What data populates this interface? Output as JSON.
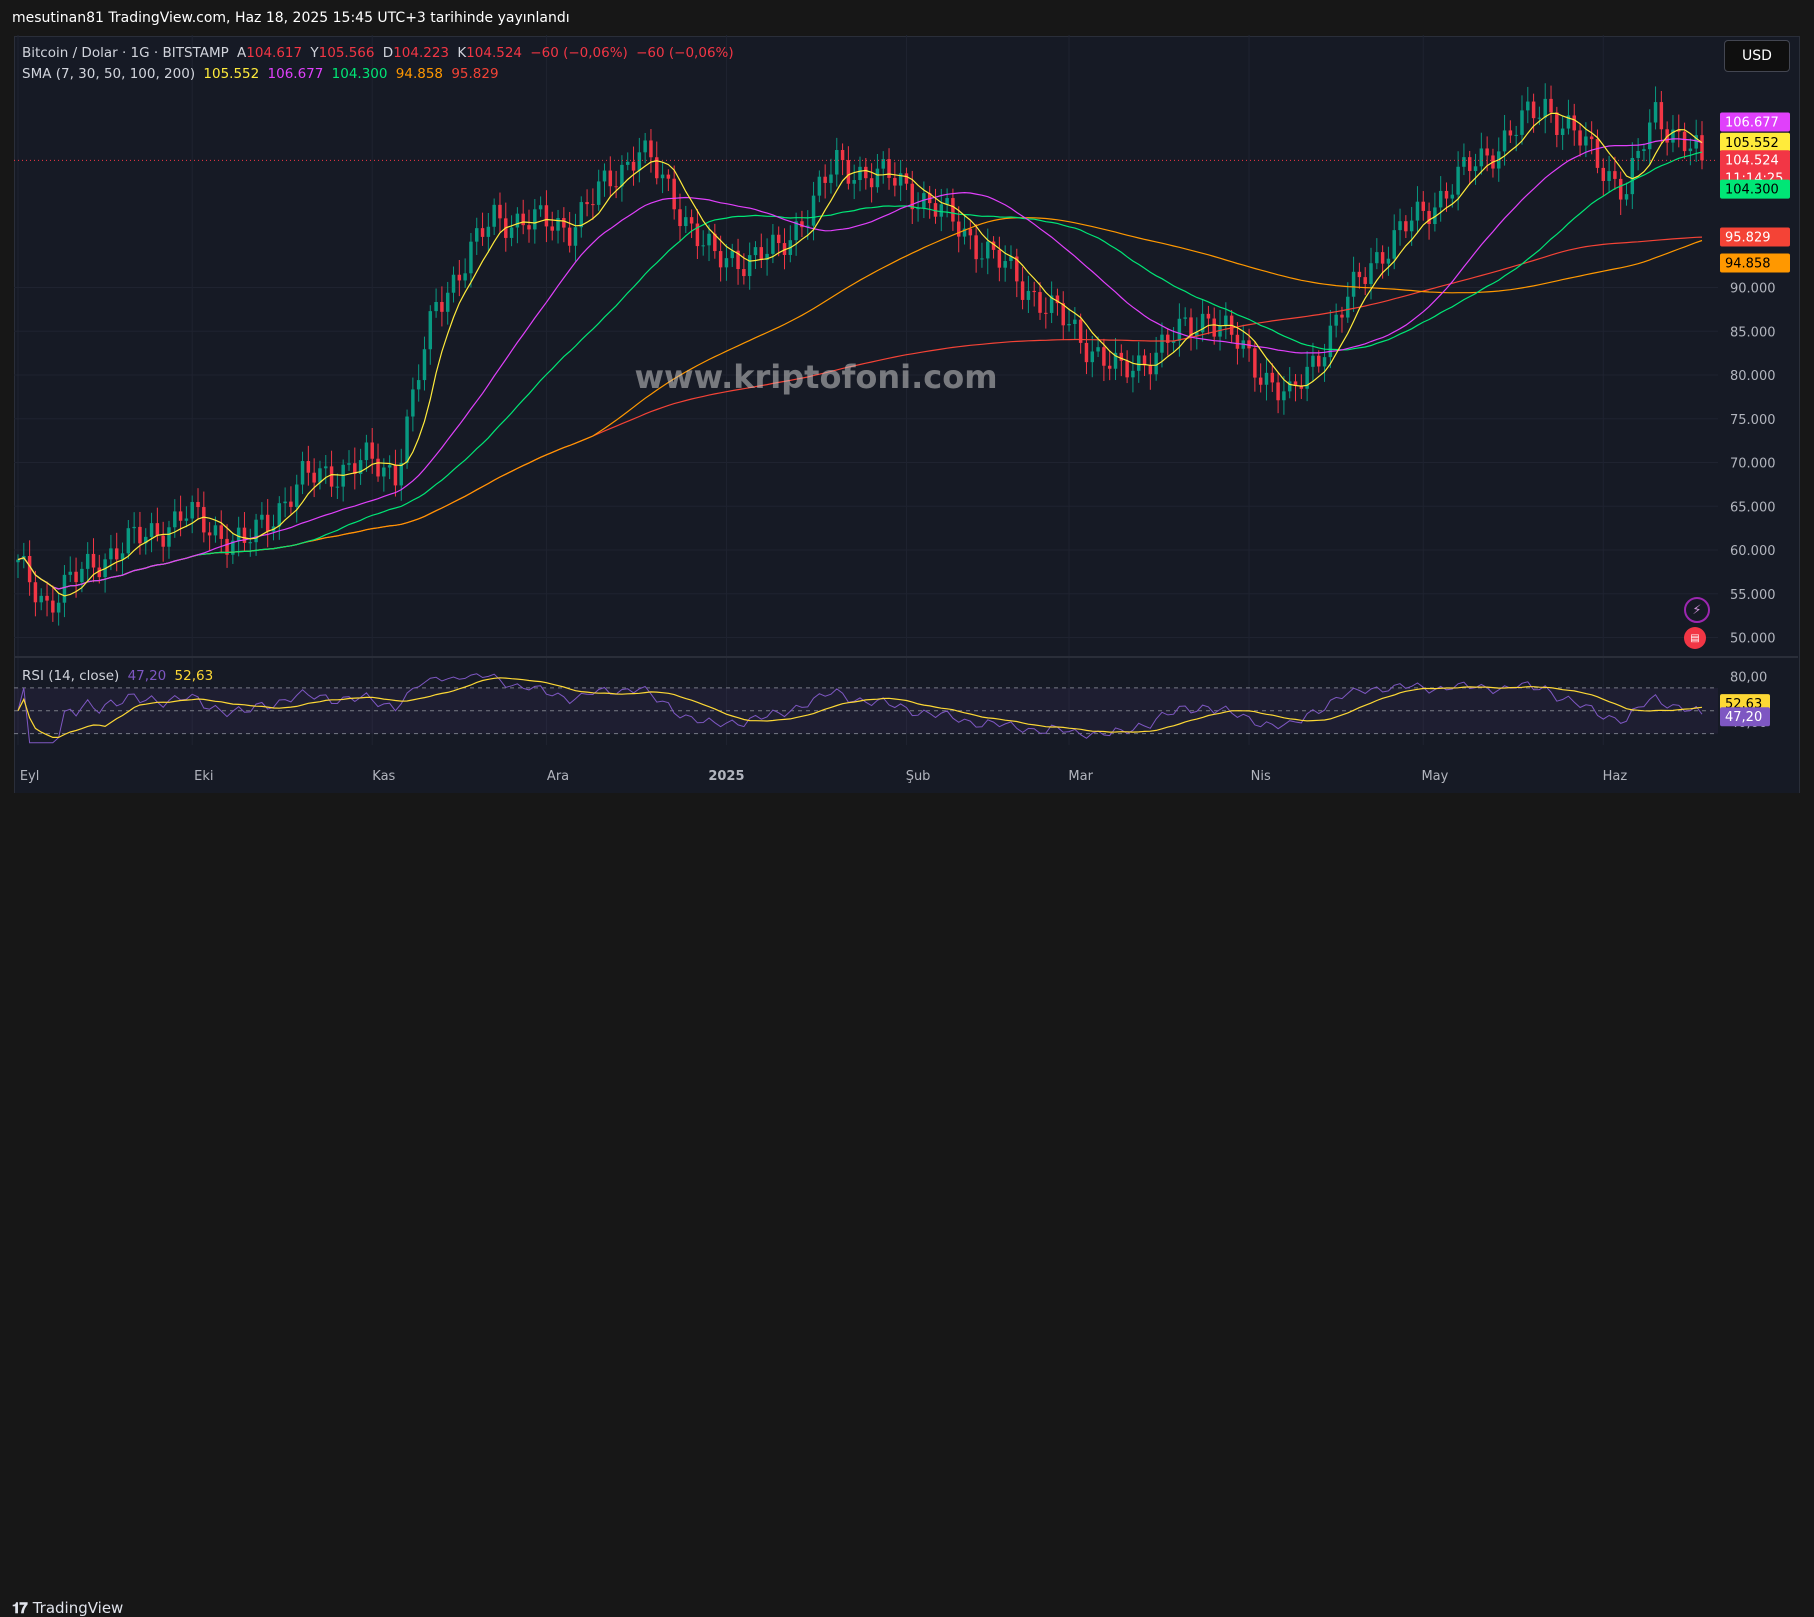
{
  "header": {
    "published": "mesutinan81 TradingView.com, Haz 18, 2025 15:45 UTC+3 tarihinde yayınlandı"
  },
  "legend": {
    "symbol": "Bitcoin / Dolar · 1G · BITSTAMP",
    "open_label": "A",
    "open": "104.617",
    "high_label": "Y",
    "high": "105.566",
    "low_label": "D",
    "low": "104.223",
    "close_label": "K",
    "close": "104.524",
    "change": "−60 (−0,06%)",
    "change2": "−60 (−0,06%)",
    "sma_label": "SMA (7, 30, 50, 100, 200)",
    "sma_values": [
      "105.552",
      "106.677",
      "104.300",
      "94.858",
      "95.829"
    ],
    "rsi_label": "RSI (14, close)",
    "rsi_value": "47,20",
    "rsi_ma_value": "52,63"
  },
  "currency_button": "USD",
  "watermark": "www.kriptofoni.com",
  "footer": {
    "brand": "TradingView"
  },
  "colors": {
    "up": "#089981",
    "down": "#f23645",
    "sma7": "#ffeb3b",
    "sma30": "#e040fb",
    "sma50": "#00e676",
    "sma100": "#ff9800",
    "sma200": "#f44336",
    "rsi": "#7e57c2",
    "rsi_ma": "#fdd835"
  },
  "price_axis": {
    "ticks": [
      "50.000",
      "55.000",
      "60.000",
      "65.000",
      "70.000",
      "75.000",
      "80.000",
      "85.000",
      "90.000"
    ],
    "tags": {
      "sma30": "106.677",
      "sma7": "105.552",
      "last": "104.524",
      "countdown": "11:14:25",
      "sma50": "104.300",
      "sma200": "95.829",
      "sma100": "94.858"
    }
  },
  "rsi_axis": {
    "ticks": [
      "80,00",
      "40,00"
    ],
    "tags": {
      "rsi_ma": "52,63",
      "rsi": "47,20"
    }
  },
  "time_axis": [
    "Eyl",
    "Eki",
    "Kas",
    "Ara",
    "2025",
    "Şub",
    "Mar",
    "Nis",
    "May",
    "Haz"
  ],
  "icons": [
    "lightning-icon",
    "us-flag-icon"
  ],
  "chart_data": {
    "type": "candlestick",
    "title": "Bitcoin / Dolar · 1G · BITSTAMP",
    "ylim": [
      48000,
      112000
    ],
    "rsi_ylim": [
      20,
      90
    ],
    "x_range": [
      "2024-09-01",
      "2025-06-18"
    ],
    "closes_approx": [
      {
        "date": "2024-09-01",
        "close": 58000
      },
      {
        "date": "2024-09-06",
        "close": 54000
      },
      {
        "date": "2024-09-15",
        "close": 59000
      },
      {
        "date": "2024-09-30",
        "close": 64000
      },
      {
        "date": "2024-10-10",
        "close": 60500
      },
      {
        "date": "2024-10-20",
        "close": 68000
      },
      {
        "date": "2024-10-31",
        "close": 70000
      },
      {
        "date": "2024-11-05",
        "close": 69000
      },
      {
        "date": "2024-11-12",
        "close": 88000
      },
      {
        "date": "2024-11-22",
        "close": 98000
      },
      {
        "date": "2024-12-05",
        "close": 97000
      },
      {
        "date": "2024-12-17",
        "close": 106000
      },
      {
        "date": "2024-12-30",
        "close": 93000
      },
      {
        "date": "2025-01-10",
        "close": 94000
      },
      {
        "date": "2025-01-20",
        "close": 104000
      },
      {
        "date": "2025-01-31",
        "close": 102000
      },
      {
        "date": "2025-02-10",
        "close": 97000
      },
      {
        "date": "2025-02-25",
        "close": 88000
      },
      {
        "date": "2025-03-10",
        "close": 80000
      },
      {
        "date": "2025-03-25",
        "close": 87000
      },
      {
        "date": "2025-04-08",
        "close": 77000
      },
      {
        "date": "2025-04-22",
        "close": 93000
      },
      {
        "date": "2025-05-08",
        "close": 103000
      },
      {
        "date": "2025-05-22",
        "close": 111000
      },
      {
        "date": "2025-06-05",
        "close": 101000
      },
      {
        "date": "2025-06-10",
        "close": 110000
      },
      {
        "date": "2025-06-18",
        "close": 104524
      }
    ],
    "sma_last": {
      "sma7": 105552,
      "sma30": 106677,
      "sma50": 104300,
      "sma100": 94858,
      "sma200": 95829
    },
    "rsi_last": 47.2,
    "rsi_ma_last": 52.63
  }
}
